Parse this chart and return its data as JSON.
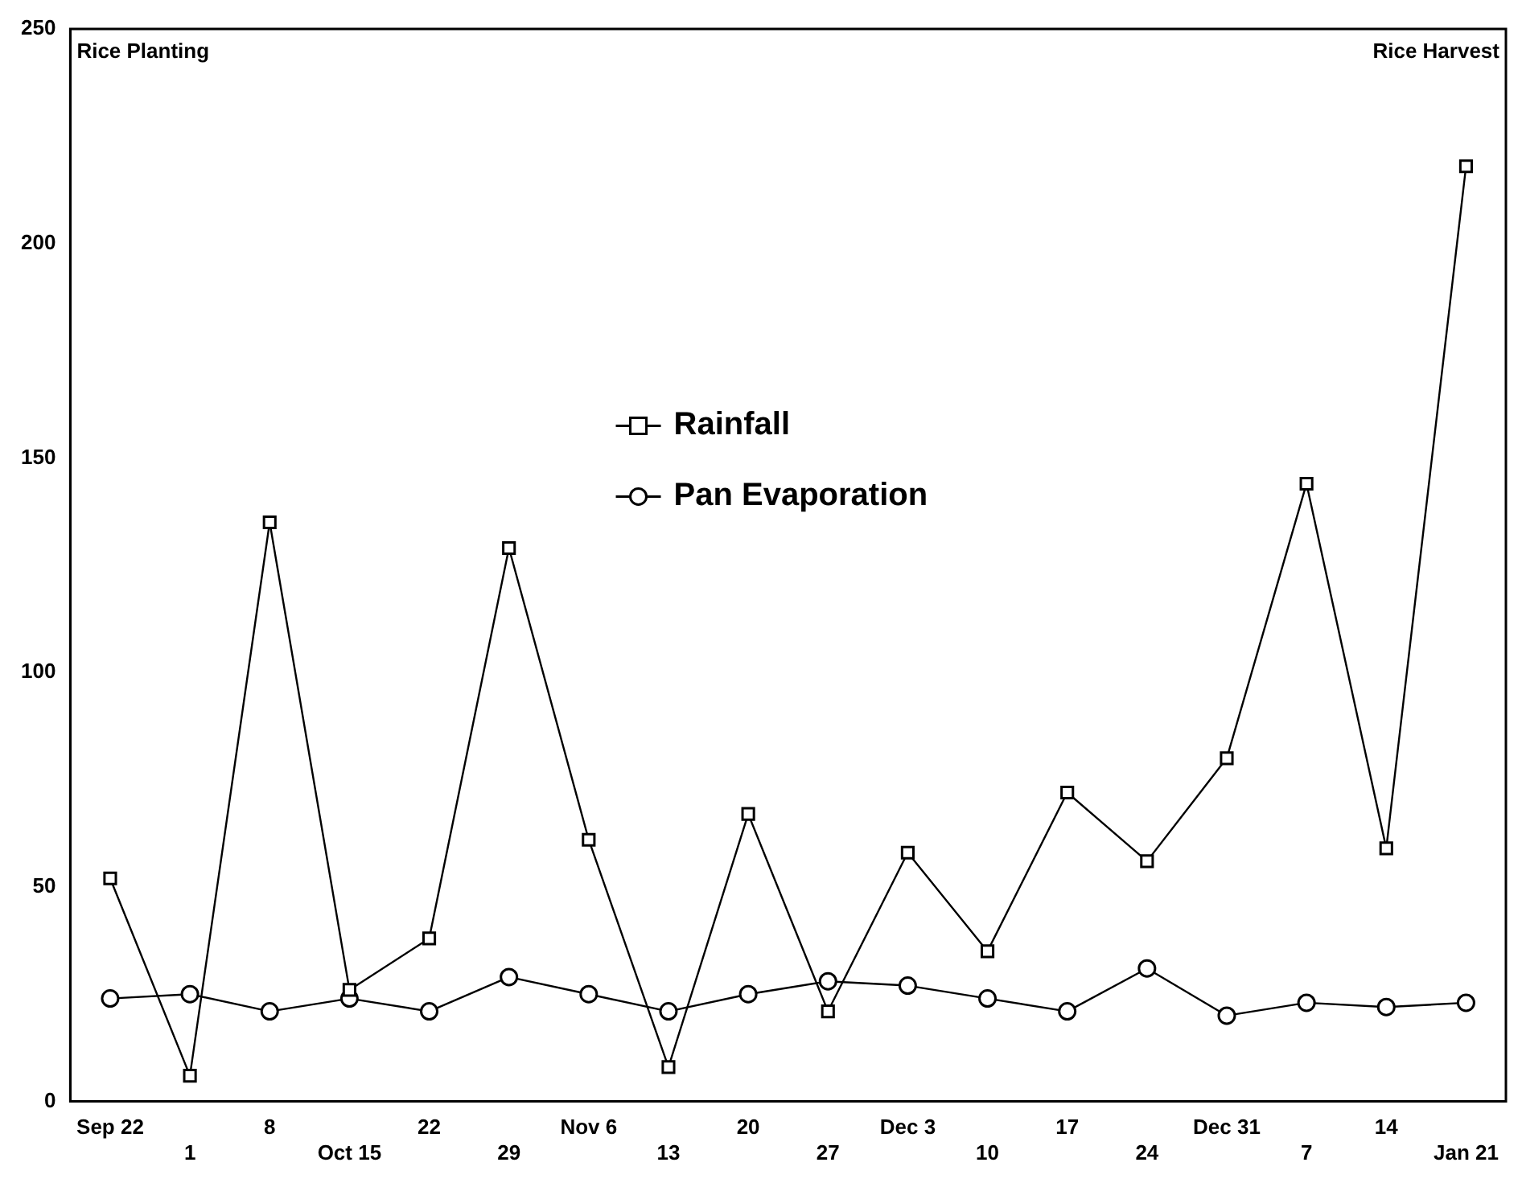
{
  "chart_data": {
    "type": "line",
    "categories": [
      "Sep 22",
      "1",
      "8",
      "Oct 15",
      "22",
      "29",
      "Nov 6",
      "13",
      "20",
      "27",
      "Dec 3",
      "10",
      "17",
      "24",
      "Dec 31",
      "7",
      "14",
      "Jan 21"
    ],
    "series": [
      {
        "name": "Rainfall",
        "color": "#000000",
        "marker": "square",
        "values": [
          52,
          6,
          135,
          26,
          38,
          129,
          61,
          8,
          67,
          21,
          58,
          35,
          72,
          56,
          80,
          144,
          59,
          218
        ]
      },
      {
        "name": "Pan Evaporation",
        "color": "#000000",
        "marker": "circle",
        "values": [
          24,
          25,
          21,
          24,
          21,
          29,
          25,
          21,
          25,
          28,
          27,
          24,
          21,
          31,
          20,
          23,
          22,
          23
        ]
      }
    ],
    "ylim": [
      0,
      250
    ],
    "yticks": [
      0,
      50,
      100,
      150,
      200,
      250
    ],
    "grid": false,
    "legend": "center",
    "line_style": "solid",
    "annotations": [
      "Rice Planting",
      "Rice Harvest"
    ]
  }
}
